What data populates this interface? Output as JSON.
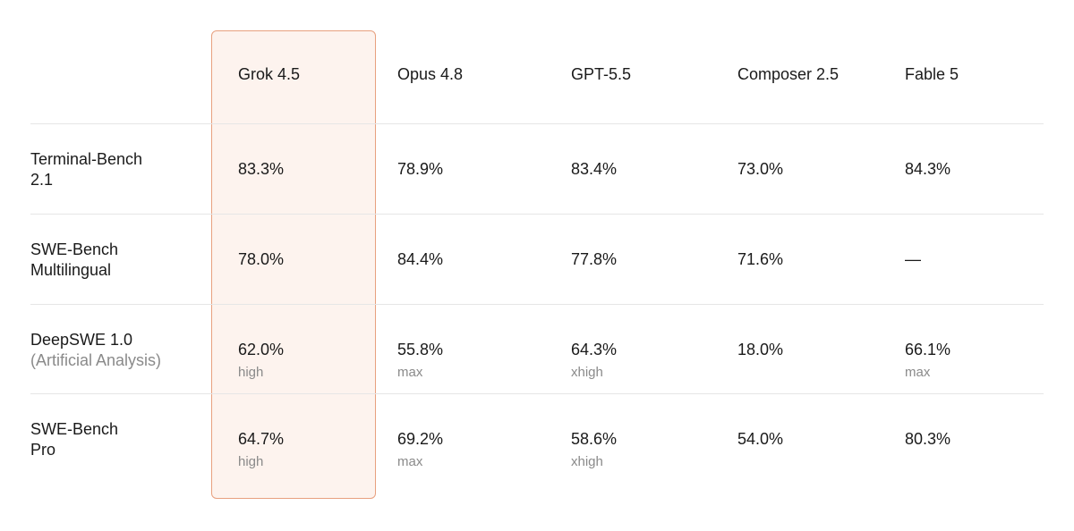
{
  "table": {
    "header": [
      "Grok 4.5",
      "Opus 4.8",
      "GPT-5.5",
      "Composer 2.5",
      "Fable 5"
    ],
    "rows": [
      {
        "label": [
          "Terminal-Bench",
          "2.1"
        ],
        "cells": [
          {
            "value": "83.3%"
          },
          {
            "value": "78.9%"
          },
          {
            "value": "83.4%"
          },
          {
            "value": "73.0%"
          },
          {
            "value": "84.3%"
          }
        ]
      },
      {
        "label": [
          "SWE-Bench",
          "Multilingual"
        ],
        "cells": [
          {
            "value": "78.0%"
          },
          {
            "value": "84.4%"
          },
          {
            "value": "77.8%"
          },
          {
            "value": "71.6%"
          },
          {
            "value": "—"
          }
        ]
      },
      {
        "label": [
          "DeepSWE 1.0"
        ],
        "sublabel": "(Artificial Analysis)",
        "cells": [
          {
            "value": "62.0%",
            "note": "high"
          },
          {
            "value": "55.8%",
            "note": "max"
          },
          {
            "value": "64.3%",
            "note": "xhigh"
          },
          {
            "value": "18.0%"
          },
          {
            "value": "66.1%",
            "note": "max"
          }
        ]
      },
      {
        "label": [
          "SWE-Bench",
          "Pro"
        ],
        "cells": [
          {
            "value": "64.7%",
            "note": "high"
          },
          {
            "value": "69.2%",
            "note": "max"
          },
          {
            "value": "58.6%",
            "note": "xhigh"
          },
          {
            "value": "54.0%"
          },
          {
            "value": "80.3%"
          }
        ]
      }
    ]
  }
}
